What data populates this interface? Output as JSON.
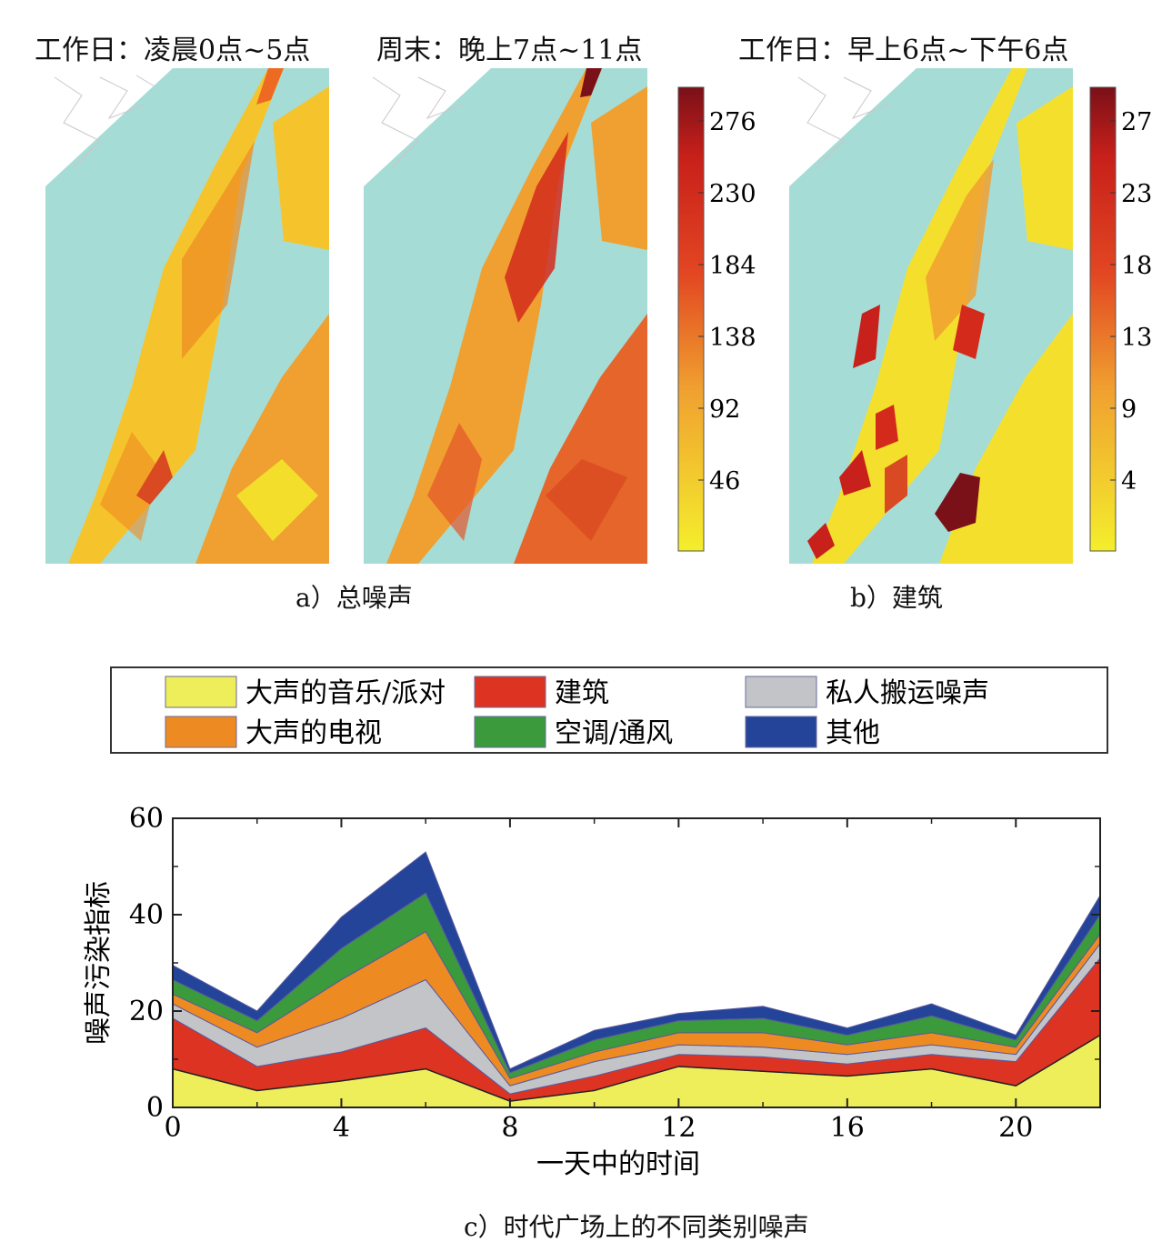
{
  "maps": {
    "panel1_title": "工作日：凌晨0点~5点",
    "panel2_title": "周末：晚上7点~11点",
    "panel3_title": "工作日：早上6点~下午6点",
    "colorbar_a_ticks": [
      "276",
      "230",
      "184",
      "138",
      "92",
      "46"
    ],
    "colorbar_b_ticks": [
      "27",
      "23",
      "18",
      "13",
      "9",
      "4"
    ],
    "colors": {
      "water": "#a6dcd6",
      "low": "#f4ee2c",
      "mid": "#ee8a22",
      "high": "#d42a1c",
      "max": "#7a1018"
    },
    "caption_a": "a）总噪声",
    "caption_b": "b）建筑"
  },
  "legend": {
    "items": [
      {
        "label": "大声的音乐/派对",
        "color": "#eeee5a"
      },
      {
        "label": "建筑",
        "color": "#dd3322"
      },
      {
        "label": "私人搬运噪声",
        "color": "#c2c4c8"
      },
      {
        "label": "大声的电视",
        "color": "#ee8a22"
      },
      {
        "label": "空调/通风",
        "color": "#3a9a3c"
      },
      {
        "label": "其他",
        "color": "#24449a"
      }
    ]
  },
  "caption_c": "c）时代广场上的不同类别噪声",
  "chart_data": {
    "type": "area",
    "stacked": true,
    "xlabel": "一天中的时间",
    "ylabel": "噪声污染指标",
    "x": [
      0,
      2,
      4,
      6,
      8,
      10,
      12,
      14,
      16,
      18,
      20,
      22
    ],
    "xlim": [
      0,
      22
    ],
    "ylim": [
      0,
      60
    ],
    "xticks": [
      0,
      4,
      8,
      12,
      16,
      20
    ],
    "yticks": [
      0,
      20,
      40,
      60
    ],
    "series": [
      {
        "name": "大声的音乐/派对",
        "color": "#eeee5a",
        "values": [
          8,
          3.5,
          5.5,
          8,
          1.3,
          3.5,
          8.5,
          7.5,
          6.5,
          8,
          4.5,
          15
        ]
      },
      {
        "name": "建筑",
        "color": "#dd3322",
        "values": [
          10.5,
          5,
          6,
          8.5,
          1.5,
          3,
          2.5,
          3,
          2.5,
          3,
          5,
          16
        ]
      },
      {
        "name": "私人搬运噪声",
        "color": "#c2c4c8",
        "values": [
          3,
          4,
          7,
          10,
          1.7,
          3,
          2,
          2,
          2,
          2,
          1.5,
          3
        ]
      },
      {
        "name": "大声的电视",
        "color": "#ee8a22",
        "values": [
          2,
          3,
          8,
          10,
          1.5,
          2,
          2.5,
          3,
          2,
          2.5,
          1.5,
          2
        ]
      },
      {
        "name": "空调/通风",
        "color": "#3a9a3c",
        "values": [
          3,
          2.5,
          6.5,
          8,
          1.2,
          2.5,
          2.5,
          3,
          2,
          3.5,
          1.5,
          4
        ]
      },
      {
        "name": "其他",
        "color": "#24449a",
        "values": [
          3,
          2,
          6.5,
          8.5,
          0.8,
          2,
          1.5,
          2.5,
          1.5,
          2.5,
          1,
          4
        ]
      }
    ]
  }
}
